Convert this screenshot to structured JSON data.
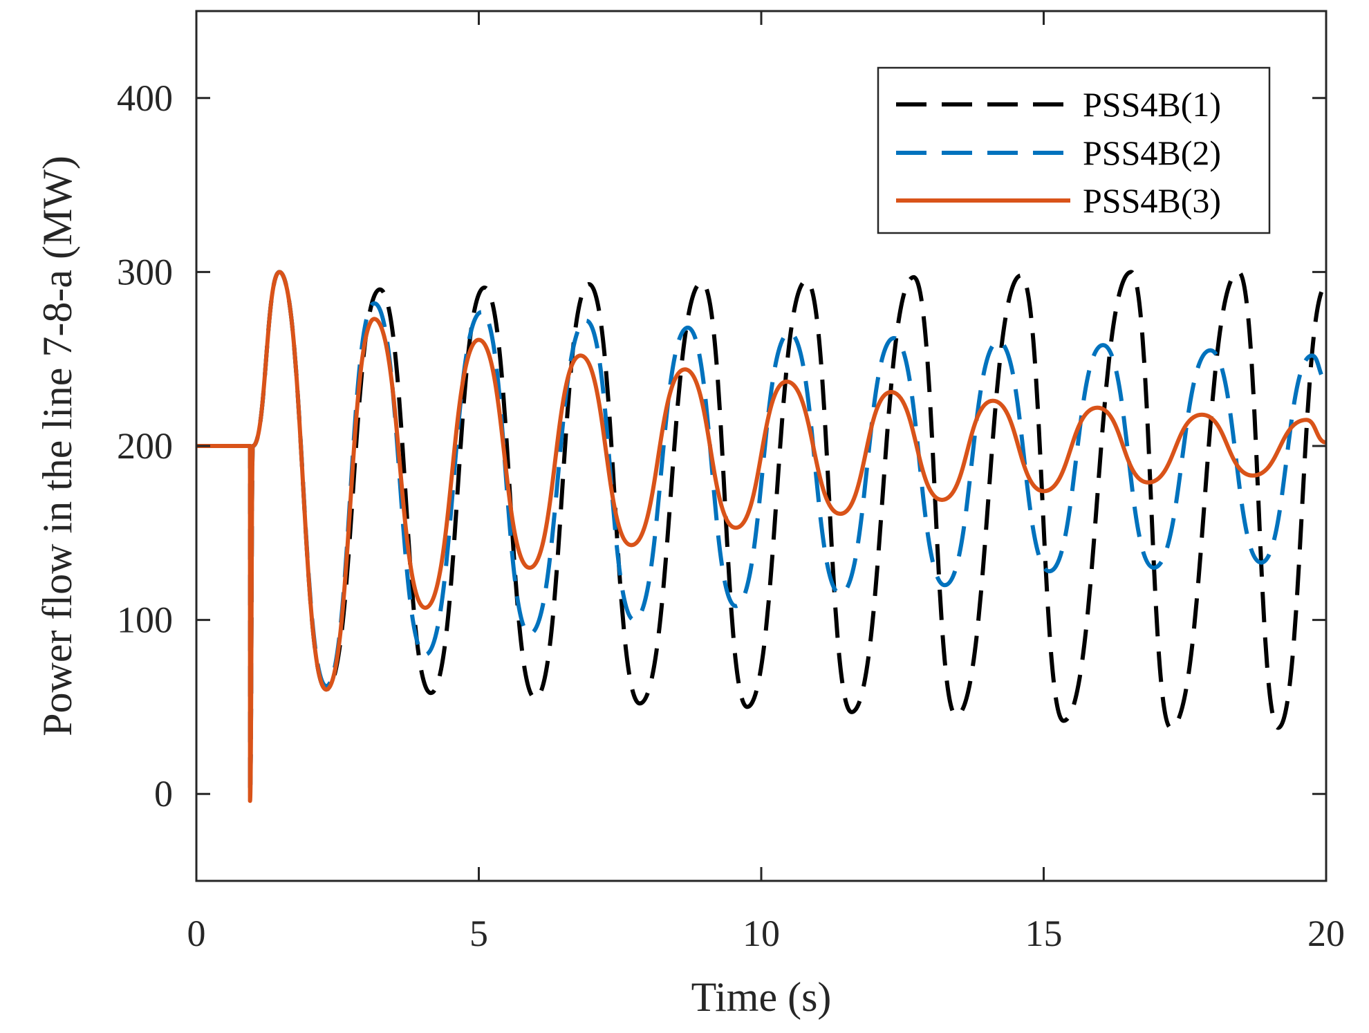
{
  "chart_data": {
    "type": "line",
    "title": "",
    "xlabel": "Time (s)",
    "ylabel": "Power flow in the line 7-8-a (MW)",
    "xlim": [
      0,
      20
    ],
    "ylim": [
      -50,
      450
    ],
    "xticks": [
      0,
      5,
      10,
      15,
      20
    ],
    "xtick_labels": [
      "0",
      "5",
      "10",
      "15",
      "20"
    ],
    "yticks": [
      0,
      100,
      200,
      300,
      400
    ],
    "ytick_labels": [
      "0",
      "100",
      "200",
      "300",
      "400"
    ],
    "grid": false,
    "legend_position": "top-right",
    "series": [
      {
        "name": "PSS4B(1)",
        "color": "#000000",
        "style": "dashed",
        "x": [
          0,
          0.95,
          0.95,
          1.0,
          1.47,
          2.3,
          3.25,
          4.15,
          5.1,
          6.0,
          6.95,
          7.85,
          8.95,
          9.75,
          10.8,
          11.6,
          12.7,
          13.45,
          14.6,
          15.35,
          16.55,
          17.25,
          18.45,
          19.15,
          20.0
        ],
        "y": [
          200,
          200,
          0,
          200,
          300,
          60,
          290,
          58,
          291,
          55,
          293,
          52,
          294,
          50,
          295,
          47,
          297,
          45,
          298,
          42,
          300,
          38,
          300,
          38,
          292
        ]
      },
      {
        "name": "PSS4B(2)",
        "color": "#0072BD",
        "style": "dashed",
        "x": [
          0,
          0.95,
          0.95,
          1.0,
          1.47,
          2.3,
          3.15,
          4.05,
          5.05,
          5.9,
          6.9,
          7.75,
          8.7,
          9.55,
          10.5,
          11.4,
          12.35,
          13.25,
          14.2,
          15.1,
          16.05,
          16.95,
          17.95,
          18.85,
          19.75,
          20.0
        ],
        "y": [
          200,
          200,
          0,
          200,
          300,
          62,
          282,
          80,
          277,
          92,
          272,
          100,
          268,
          108,
          265,
          115,
          262,
          120,
          260,
          128,
          258,
          130,
          255,
          133,
          252,
          238
        ]
      },
      {
        "name": "PSS4B(3)",
        "color": "#D95319",
        "style": "solid",
        "x": [
          0,
          0.95,
          0.95,
          1.0,
          1.47,
          2.3,
          3.15,
          4.05,
          5.0,
          5.9,
          6.8,
          7.7,
          8.65,
          9.55,
          10.45,
          11.4,
          12.3,
          13.2,
          14.1,
          15.0,
          15.95,
          16.85,
          17.8,
          18.7,
          19.65,
          20.0
        ],
        "y": [
          200,
          200,
          -4,
          200,
          300,
          60,
          273,
          107,
          261,
          130,
          252,
          143,
          244,
          153,
          237,
          161,
          231,
          169,
          226,
          174,
          222,
          179,
          218,
          183,
          215,
          202
        ]
      }
    ]
  }
}
